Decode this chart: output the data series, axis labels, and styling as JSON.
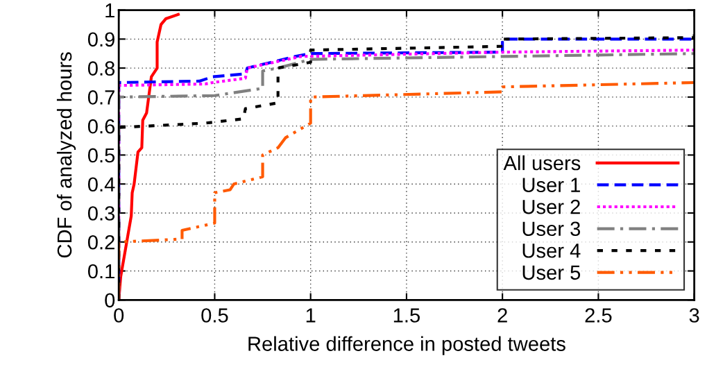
{
  "chart_data": {
    "type": "line",
    "xlabel": "Relative difference in posted tweets",
    "ylabel": "CDF of analyzed hours",
    "xlim": [
      0,
      3
    ],
    "ylim": [
      0,
      1
    ],
    "xticks": [
      0,
      0.5,
      1,
      1.5,
      2,
      2.5,
      3
    ],
    "yticks": [
      0,
      0.1,
      0.2,
      0.3,
      0.4,
      0.5,
      0.6,
      0.7,
      0.8,
      0.9,
      1
    ],
    "grid": true,
    "legend": "bottom right",
    "marker": "none",
    "series": [
      {
        "name": "All users",
        "color": "#ff0000",
        "line_style": "solid",
        "x": [
          0,
          0.01,
          0.065,
          0.07,
          0.08,
          0.1,
          0.12,
          0.125,
          0.145,
          0.17,
          0.2,
          0.2,
          0.22,
          0.245,
          0.31
        ],
        "values": [
          0,
          0.08,
          0.29,
          0.37,
          0.4,
          0.51,
          0.525,
          0.62,
          0.645,
          0.77,
          0.8,
          0.89,
          0.95,
          0.97,
          0.985
        ]
      },
      {
        "name": "User 1",
        "color": "#0000ff",
        "line_style": "dashed",
        "x": [
          0,
          0,
          0.42,
          0.49,
          0.66,
          0.67,
          0.92,
          1,
          2,
          2,
          3
        ],
        "values": [
          0,
          0.75,
          0.755,
          0.77,
          0.78,
          0.8,
          0.84,
          0.85,
          0.855,
          0.9,
          0.9
        ]
      },
      {
        "name": "User 2",
        "color": "#ff00ff",
        "line_style": "dotted",
        "x": [
          0,
          0,
          0.45,
          0.49,
          0.66,
          0.67,
          0.95,
          2,
          3
        ],
        "values": [
          0,
          0.74,
          0.745,
          0.75,
          0.765,
          0.8,
          0.84,
          0.855,
          0.862
        ]
      },
      {
        "name": "User 3",
        "color": "#808080",
        "line_style": "dashdot",
        "x": [
          0,
          0,
          0.5,
          0.75,
          0.75,
          0.83,
          1,
          2,
          3
        ],
        "values": [
          0,
          0.7,
          0.705,
          0.73,
          0.79,
          0.8,
          0.83,
          0.84,
          0.85
        ]
      },
      {
        "name": "User 4",
        "color": "#000000",
        "line_style": "dashed",
        "x": [
          0,
          0,
          0.45,
          0.65,
          0.66,
          0.83,
          0.83,
          1,
          1,
          2,
          2,
          3,
          3
        ],
        "values": [
          0,
          0.595,
          0.61,
          0.625,
          0.66,
          0.68,
          0.8,
          0.82,
          0.862,
          0.875,
          0.9,
          0.905,
          0.92
        ]
      },
      {
        "name": "User 5",
        "color": "#ff5a00",
        "line_style": "dashdotdot",
        "x": [
          0,
          0,
          0.33,
          0.33,
          0.5,
          0.5,
          0.58,
          0.6,
          0.75,
          0.75,
          0.83,
          0.87,
          1,
          1,
          2,
          2,
          3
        ],
        "values": [
          0,
          0.2,
          0.21,
          0.24,
          0.265,
          0.37,
          0.38,
          0.4,
          0.425,
          0.5,
          0.525,
          0.56,
          0.61,
          0.7,
          0.718,
          0.735,
          0.75
        ]
      }
    ]
  }
}
